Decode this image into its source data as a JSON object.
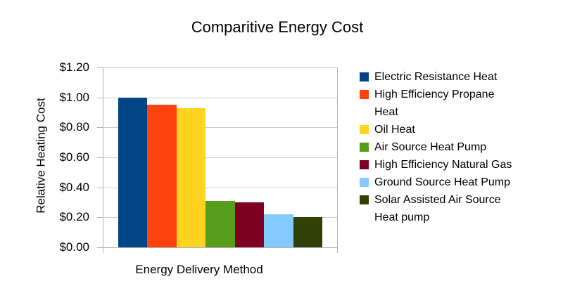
{
  "chart_data": {
    "type": "bar",
    "title": "Comparitive Energy Cost",
    "xlabel": "Energy Delivery Method",
    "ylabel": "Relative Heating Cost",
    "ylim": [
      0,
      1.2
    ],
    "grid": true,
    "legend_position": "right",
    "yticks": [
      {
        "label": "$0.00",
        "value": 0.0
      },
      {
        "label": "$0.20",
        "value": 0.2
      },
      {
        "label": "$0.40",
        "value": 0.4
      },
      {
        "label": "$0.60",
        "value": 0.6
      },
      {
        "label": "$0.80",
        "value": 0.8
      },
      {
        "label": "$1.00",
        "value": 1.0
      },
      {
        "label": "$1.20",
        "value": 1.2
      }
    ],
    "series": [
      {
        "name": "Electric Resistance Heat",
        "label_lines": [
          "Electric Resistance Heat"
        ],
        "value": 1.0,
        "color": "#004586"
      },
      {
        "name": "High Efficiency Propane Heat",
        "label_lines": [
          "High Efficiency Propane",
          "Heat"
        ],
        "value": 0.95,
        "color": "#FF420E"
      },
      {
        "name": "Oil Heat",
        "label_lines": [
          "Oil Heat"
        ],
        "value": 0.93,
        "color": "#FFD320"
      },
      {
        "name": "Air Source Heat Pump",
        "label_lines": [
          "Air Source Heat Pump"
        ],
        "value": 0.31,
        "color": "#579D1C"
      },
      {
        "name": "High Efficiency Natural Gas",
        "label_lines": [
          "High Efficiency Natural Gas"
        ],
        "value": 0.3,
        "color": "#7E0021"
      },
      {
        "name": "Ground Source Heat Pump",
        "label_lines": [
          "Ground Source Heat Pump"
        ],
        "value": 0.22,
        "color": "#83CAFF"
      },
      {
        "name": "Solar Assisted Air Source Heat pump",
        "label_lines": [
          "Solar Assisted Air Source",
          "Heat pump"
        ],
        "value": 0.2,
        "color": "#314004"
      }
    ],
    "colors": {
      "grid": "#cccccc",
      "axis": "#b3b3b3",
      "text": "#000000",
      "background": "#ffffff"
    }
  }
}
